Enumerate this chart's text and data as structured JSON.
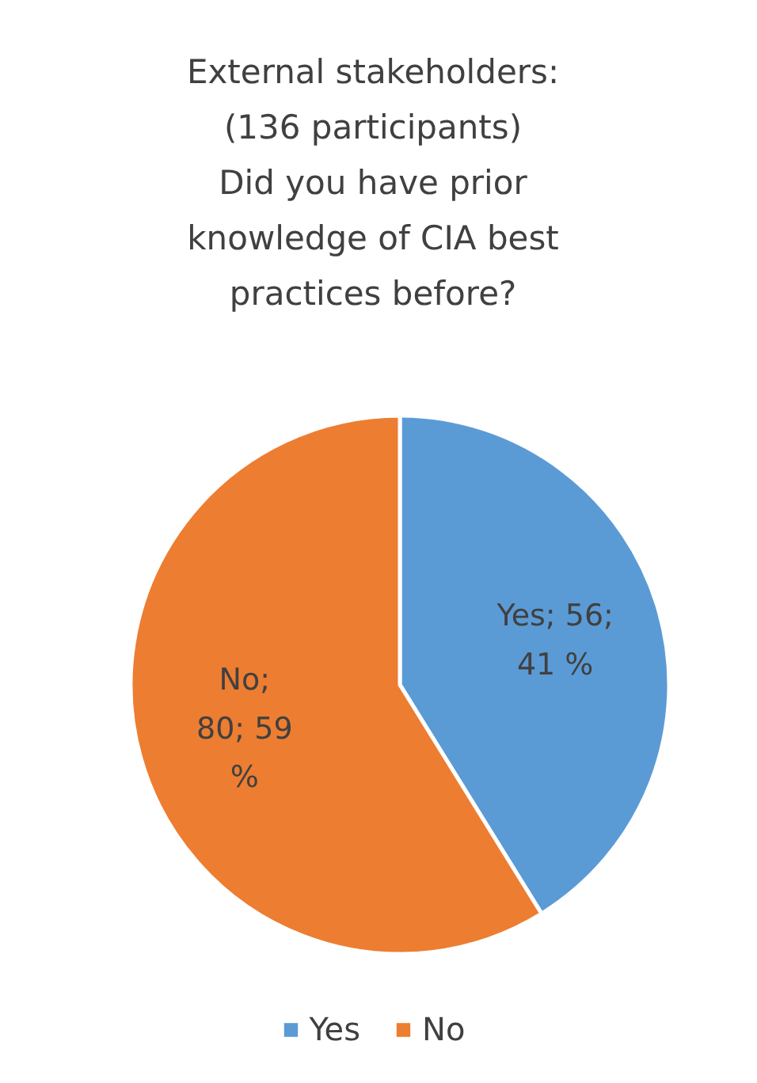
{
  "chart_data": {
    "type": "pie",
    "title": "External stakeholders:\n(136 participants)\nDid you have prior\nknowledge of CIA best\npractices before?",
    "categories": [
      "Yes",
      "No"
    ],
    "values": [
      56,
      80
    ],
    "colors": [
      "#5b9bd5",
      "#ed7d31"
    ],
    "value_labels": [
      "Yes; 56;\n41 %",
      "No;\n80; 59\n%"
    ],
    "legend": "bottom"
  }
}
